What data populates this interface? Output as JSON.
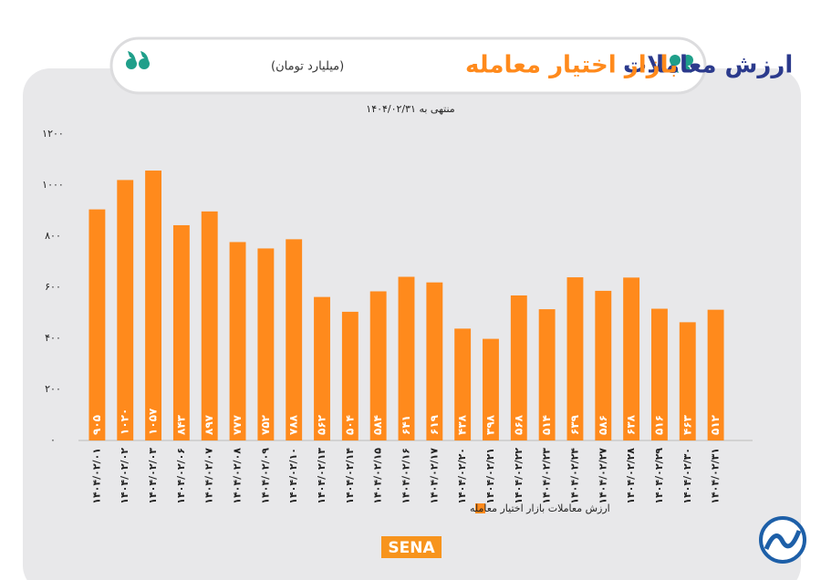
{
  "chart_data": {
    "type": "bar",
    "title_main": "ارزش معاملات",
    "title_accent": "بازار اختیار معامله",
    "subtitle": "(میلیارد تومان)",
    "note": "منتهی به ۱۴۰۴/۰۲/۳۱",
    "categories": [
      "۱۴۰۴/۰۲/۰۱",
      "۱۴۰۴/۰۲/۰۲",
      "۱۴۰۴/۰۲/۰۳",
      "۱۴۰۴/۰۲/۰۶",
      "۱۴۰۴/۰۲/۰۷",
      "۱۴۰۴/۰۲/۰۸",
      "۱۴۰۴/۰۲/۰۹",
      "۱۴۰۴/۰۲/۱۰",
      "۱۴۰۴/۰۲/۱۳",
      "۱۴۰۴/۰۲/۱۴",
      "۱۴۰۴/۰۲/۱۵",
      "۱۴۰۴/۰۲/۱۶",
      "۱۴۰۴/۰۲/۱۷",
      "۱۴۰۴/۰۲/۲۰",
      "۱۴۰۴/۰۲/۲۱",
      "۱۴۰۴/۰۲/۲۲",
      "۱۴۰۴/۰۲/۲۳",
      "۱۴۰۴/۰۲/۲۴",
      "۱۴۰۴/۰۲/۲۷",
      "۱۴۰۴/۰۲/۲۸",
      "۱۴۰۴/۰۲/۲۹",
      "۱۴۰۴/۰۲/۳۰",
      "۱۴۰۴/۰۲/۳۱"
    ],
    "series": [
      {
        "name": "ارزش معاملات بازار اختیار معامله",
        "color": "#ff8a1c",
        "values": [
          905,
          1020,
          1057,
          843,
          897,
          777,
          752,
          788,
          562,
          504,
          584,
          641,
          619,
          438,
          398,
          568,
          514,
          639,
          586,
          638,
          516,
          463,
          512
        ],
        "value_labels": [
          "۹۰۵",
          "۱۰۲۰",
          "۱۰۵۷",
          "۸۴۳",
          "۸۹۷",
          "۷۷۷",
          "۷۵۲",
          "۷۸۸",
          "۵۶۲",
          "۵۰۴",
          "۵۸۴",
          "۶۴۱",
          "۶۱۹",
          "۴۳۸",
          "۳۹۸",
          "۵۶۸",
          "۵۱۴",
          "۶۳۹",
          "۵۸۶",
          "۶۳۸",
          "۵۱۶",
          "۴۶۳",
          "۵۱۲"
        ]
      }
    ],
    "ylim": [
      0,
      1200
    ],
    "yticks": [
      {
        "value": 0,
        "label": "۰"
      },
      {
        "value": 200,
        "label": "۲۰۰"
      },
      {
        "value": 400,
        "label": "۴۰۰"
      },
      {
        "value": 600,
        "label": "۶۰۰"
      },
      {
        "value": 800,
        "label": "۸۰۰"
      },
      {
        "value": 1000,
        "label": "۱۰۰۰"
      },
      {
        "value": 1200,
        "label": "۱۲۰۰"
      }
    ],
    "grid": false,
    "logo": "SENA"
  }
}
